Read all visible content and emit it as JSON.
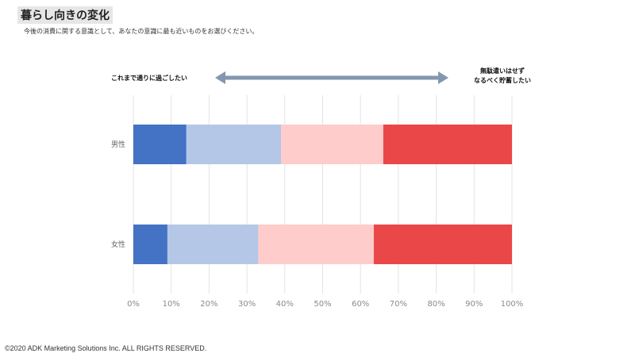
{
  "header": {
    "title": "暮らし向きの変化",
    "subtitle": "今後の消費に関する意識として、あなたの意識に最も近いものをお選びください。"
  },
  "scale_labels": {
    "left": "これまで通りに過ごしたい",
    "right_line1": "無駄遣いはせず",
    "right_line2": "なるべく貯蓄したい",
    "arrow_color": "#8497b0"
  },
  "footer": {
    "copyright": "©2020 ADK Marketing Solutions Inc. ALL RIGHTS RESERVED."
  },
  "chart_data": {
    "type": "bar",
    "orientation": "horizontal",
    "stacked": true,
    "percent": true,
    "categories": [
      "男性",
      "女性"
    ],
    "series": [
      {
        "values": [
          14,
          9
        ],
        "color": "#4472c4"
      },
      {
        "values": [
          25,
          24
        ],
        "color": "#b4c7e7"
      },
      {
        "values": [
          27,
          30.5
        ],
        "color": "#ffcccc"
      },
      {
        "values": [
          34,
          36.5
        ],
        "color": "#ea4848"
      }
    ],
    "xlim": [
      0,
      100
    ],
    "xticks": [
      "0%",
      "10%",
      "20%",
      "30%",
      "40%",
      "50%",
      "60%",
      "70%",
      "80%",
      "90%",
      "100%"
    ],
    "grid": true,
    "legend": "none"
  }
}
